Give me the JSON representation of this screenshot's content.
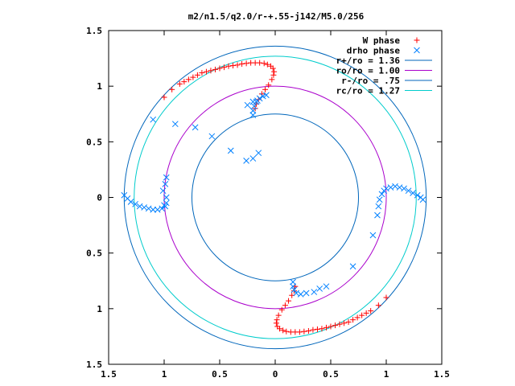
{
  "chart_data": {
    "type": "scatter",
    "title": "m2/n1.5/q2.0/r-+.55-j142/M5.0/256",
    "xlabel": "",
    "ylabel": "",
    "xlim": [
      -1.5,
      1.5
    ],
    "ylim": [
      -1.5,
      1.5
    ],
    "x_tick_values": [
      -1.5,
      -1,
      -0.5,
      0,
      0.5,
      1,
      1.5
    ],
    "x_tick_labels": [
      "1.5",
      "1",
      "0.5",
      "0",
      "0.5",
      "1",
      "1.5"
    ],
    "y_tick_values": [
      1.5,
      1,
      0.5,
      0,
      -0.5,
      -1,
      -1.5
    ],
    "y_tick_labels": [
      "1.5",
      "1",
      "0.5",
      "0",
      "0.5",
      "1",
      "1.5"
    ],
    "grid": false,
    "legend_position": "top-right",
    "series": [
      {
        "name": "W phase",
        "marker": "plus",
        "color": "#ff0000",
        "points": [
          [
            -1.0,
            0.9
          ],
          [
            -0.93,
            0.97
          ],
          [
            -0.86,
            1.02
          ],
          [
            -0.82,
            1.04
          ],
          [
            -0.78,
            1.06
          ],
          [
            -0.74,
            1.08
          ],
          [
            -0.7,
            1.1
          ],
          [
            -0.66,
            1.12
          ],
          [
            -0.62,
            1.13
          ],
          [
            -0.58,
            1.14
          ],
          [
            -0.54,
            1.15
          ],
          [
            -0.5,
            1.16
          ],
          [
            -0.46,
            1.17
          ],
          [
            -0.42,
            1.18
          ],
          [
            -0.38,
            1.185
          ],
          [
            -0.34,
            1.19
          ],
          [
            -0.3,
            1.2
          ],
          [
            -0.26,
            1.205
          ],
          [
            -0.22,
            1.21
          ],
          [
            -0.18,
            1.21
          ],
          [
            -0.14,
            1.21
          ],
          [
            -0.1,
            1.205
          ],
          [
            -0.07,
            1.195
          ],
          [
            -0.04,
            1.18
          ],
          [
            -0.02,
            1.16
          ],
          [
            -0.01,
            1.13
          ],
          [
            -0.015,
            1.1
          ],
          [
            -0.03,
            1.06
          ],
          [
            -0.06,
            1.01
          ],
          [
            -0.09,
            0.97
          ],
          [
            -0.12,
            0.93
          ],
          [
            -0.15,
            0.88
          ],
          [
            -0.17,
            0.84
          ],
          [
            -0.18,
            0.8
          ],
          [
            1.0,
            -0.9
          ],
          [
            0.93,
            -0.97
          ],
          [
            0.86,
            -1.02
          ],
          [
            0.82,
            -1.04
          ],
          [
            0.78,
            -1.06
          ],
          [
            0.74,
            -1.08
          ],
          [
            0.7,
            -1.1
          ],
          [
            0.66,
            -1.12
          ],
          [
            0.62,
            -1.13
          ],
          [
            0.58,
            -1.14
          ],
          [
            0.54,
            -1.15
          ],
          [
            0.5,
            -1.16
          ],
          [
            0.46,
            -1.17
          ],
          [
            0.42,
            -1.18
          ],
          [
            0.38,
            -1.185
          ],
          [
            0.34,
            -1.19
          ],
          [
            0.3,
            -1.2
          ],
          [
            0.26,
            -1.205
          ],
          [
            0.22,
            -1.21
          ],
          [
            0.18,
            -1.21
          ],
          [
            0.14,
            -1.21
          ],
          [
            0.1,
            -1.205
          ],
          [
            0.07,
            -1.195
          ],
          [
            0.04,
            -1.18
          ],
          [
            0.02,
            -1.16
          ],
          [
            0.01,
            -1.13
          ],
          [
            0.015,
            -1.1
          ],
          [
            0.03,
            -1.06
          ],
          [
            0.06,
            -1.01
          ],
          [
            0.09,
            -0.97
          ],
          [
            0.12,
            -0.93
          ],
          [
            0.15,
            -0.88
          ],
          [
            0.17,
            -0.84
          ],
          [
            0.18,
            -0.8
          ]
        ]
      },
      {
        "name": "drho phase",
        "marker": "cross",
        "color": "#0080ff",
        "points": [
          [
            -1.1,
            0.7
          ],
          [
            -0.9,
            0.66
          ],
          [
            -0.72,
            0.63
          ],
          [
            -0.57,
            0.55
          ],
          [
            -0.4,
            0.42
          ],
          [
            -0.26,
            0.33
          ],
          [
            -0.2,
            0.35
          ],
          [
            -0.15,
            0.4
          ],
          [
            -1.0,
            -0.07
          ],
          [
            -1.01,
            0.06
          ],
          [
            -0.99,
            0.12
          ],
          [
            -0.98,
            0.18
          ],
          [
            -1.36,
            0.02
          ],
          [
            -1.33,
            -0.01
          ],
          [
            -1.3,
            -0.04
          ],
          [
            -1.26,
            -0.06
          ],
          [
            -1.22,
            -0.08
          ],
          [
            -1.18,
            -0.09
          ],
          [
            -1.14,
            -0.1
          ],
          [
            -1.1,
            -0.11
          ],
          [
            -1.06,
            -0.11
          ],
          [
            -1.02,
            -0.1
          ],
          [
            -0.99,
            -0.08
          ],
          [
            -0.98,
            -0.05
          ],
          [
            -0.98,
            0.0
          ],
          [
            -0.25,
            0.83
          ],
          [
            -0.2,
            0.86
          ],
          [
            -0.16,
            0.87
          ],
          [
            -0.2,
            0.74
          ],
          [
            -0.2,
            0.78
          ],
          [
            -0.19,
            0.82
          ],
          [
            -0.17,
            0.86
          ],
          [
            -0.14,
            0.89
          ],
          [
            -0.11,
            0.91
          ],
          [
            -0.08,
            0.92
          ],
          [
            0.7,
            -0.62
          ],
          [
            0.88,
            -0.34
          ],
          [
            0.92,
            -0.16
          ],
          [
            0.93,
            -0.08
          ],
          [
            0.94,
            -0.02
          ],
          [
            0.96,
            0.03
          ],
          [
            0.98,
            0.06
          ],
          [
            1.0,
            0.08
          ],
          [
            1.04,
            0.09
          ],
          [
            1.08,
            0.1
          ],
          [
            1.12,
            0.09
          ],
          [
            1.16,
            0.08
          ],
          [
            1.2,
            0.06
          ],
          [
            1.24,
            0.04
          ],
          [
            1.28,
            0.02
          ],
          [
            1.31,
            0.0
          ],
          [
            1.33,
            -0.02
          ],
          [
            0.46,
            -0.8
          ],
          [
            0.4,
            -0.82
          ],
          [
            0.35,
            -0.85
          ],
          [
            0.28,
            -0.86
          ],
          [
            0.23,
            -0.87
          ],
          [
            0.19,
            -0.86
          ],
          [
            0.17,
            -0.83
          ],
          [
            0.16,
            -0.8
          ],
          [
            0.16,
            -0.76
          ]
        ]
      },
      {
        "name": "r+/ro = 1.36",
        "type": "circle",
        "radius": 1.36,
        "color": "#0066bb"
      },
      {
        "name": "ro/ro = 1.00",
        "type": "circle",
        "radius": 1.0,
        "color": "#aa00cc"
      },
      {
        "name": "r-/ro = .75",
        "type": "circle",
        "radius": 0.75,
        "color": "#0066bb"
      },
      {
        "name": "rc/ro = 1.27",
        "type": "circle",
        "radius": 1.27,
        "color": "#00cccc"
      }
    ]
  }
}
